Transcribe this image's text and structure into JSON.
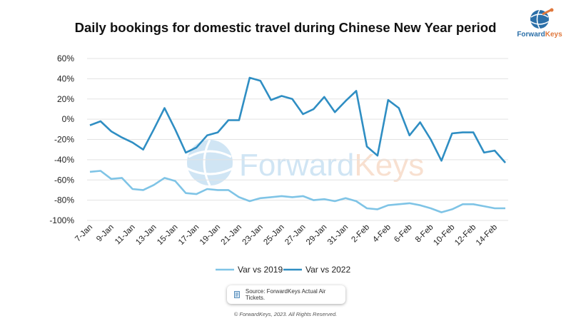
{
  "logo": {
    "name": "ForwardKeys",
    "icon": "globe-logo-icon"
  },
  "watermark": {
    "text": "ForwardKeys",
    "icon": "globe-watermark-icon"
  },
  "source_label": "Source: ForwardKeys Actual Air Tickets.",
  "copyright": "© ForwardKeys, 2023. All Rights Reserved.",
  "colors": {
    "var_2019": "#7fc4e6",
    "var_2022": "#2f8ec3",
    "grid": "#e3e3e3",
    "brand_blue": "#2b6fa8",
    "brand_orange": "#e0783c"
  },
  "chart_data": {
    "type": "line",
    "title": "Daily bookings for domestic travel during Chinese New Year period",
    "xlabel": "",
    "ylabel": "",
    "ylim": [
      -100,
      60
    ],
    "yticks": [
      "60%",
      "40%",
      "20%",
      "0%",
      "-20%",
      "-40%",
      "-60%",
      "-80%",
      "-100%"
    ],
    "grid": true,
    "legend_position": "bottom",
    "x": [
      "7-Jan",
      "8-Jan",
      "9-Jan",
      "10-Jan",
      "11-Jan",
      "12-Jan",
      "13-Jan",
      "14-Jan",
      "15-Jan",
      "16-Jan",
      "17-Jan",
      "18-Jan",
      "19-Jan",
      "20-Jan",
      "21-Jan",
      "22-Jan",
      "23-Jan",
      "24-Jan",
      "25-Jan",
      "26-Jan",
      "27-Jan",
      "28-Jan",
      "29-Jan",
      "30-Jan",
      "31-Jan",
      "1-Feb",
      "2-Feb",
      "3-Feb",
      "4-Feb",
      "5-Feb",
      "6-Feb",
      "7-Feb",
      "8-Feb",
      "9-Feb",
      "10-Feb",
      "11-Feb",
      "12-Feb",
      "13-Feb",
      "14-Feb",
      "15-Feb"
    ],
    "x_tick_labels": [
      "7-Jan",
      "9-Jan",
      "11-Jan",
      "13-Jan",
      "15-Jan",
      "17-Jan",
      "19-Jan",
      "21-Jan",
      "23-Jan",
      "25-Jan",
      "27-Jan",
      "29-Jan",
      "31-Jan",
      "2-Feb",
      "4-Feb",
      "6-Feb",
      "8-Feb",
      "10-Feb",
      "12-Feb",
      "14-Feb"
    ],
    "series": [
      {
        "name": "Var vs 2019",
        "values": [
          -52,
          -51,
          -59,
          -58,
          -69,
          -70,
          -65,
          -58,
          -61,
          -73,
          -74,
          -69,
          -70,
          -70,
          -77,
          -81,
          -78,
          -77,
          -76,
          -77,
          -76,
          -80,
          -79,
          -81,
          -78,
          -81,
          -88,
          -89,
          -85,
          -84,
          -83,
          -85,
          -88,
          -92,
          -89,
          -84,
          -84,
          -86,
          -88,
          -88
        ]
      },
      {
        "name": "Var vs 2022",
        "values": [
          -6,
          -2,
          -12,
          -18,
          -23,
          -30,
          -10,
          11,
          -10,
          -33,
          -28,
          -16,
          -13,
          -1,
          -1,
          41,
          38,
          19,
          23,
          20,
          5,
          10,
          22,
          7,
          18,
          28,
          -27,
          -36,
          19,
          11,
          -16,
          -3,
          -20,
          -41,
          -14,
          -13,
          -13,
          -33,
          -31,
          -43
        ]
      }
    ]
  }
}
